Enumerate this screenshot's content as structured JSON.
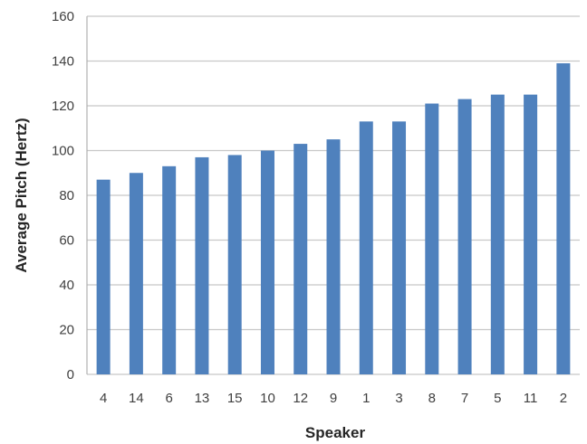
{
  "chart_data": {
    "type": "bar",
    "title": "",
    "xlabel": "Speaker",
    "ylabel": "Average Pitch (Hertz)",
    "categories": [
      "4",
      "14",
      "6",
      "13",
      "15",
      "10",
      "12",
      "9",
      "1",
      "3",
      "8",
      "7",
      "5",
      "11",
      "2"
    ],
    "values": [
      87,
      90,
      93,
      97,
      98,
      100,
      103,
      105,
      113,
      113,
      121,
      123,
      125,
      125,
      139
    ],
    "ylim": [
      0,
      160
    ],
    "yticks": [
      "0",
      "20",
      "40",
      "60",
      "80",
      "100",
      "120",
      "140",
      "160"
    ],
    "grid": true,
    "legend": "none",
    "bar_color": "#4f81bd",
    "grid_color": "#c8c8c8"
  }
}
